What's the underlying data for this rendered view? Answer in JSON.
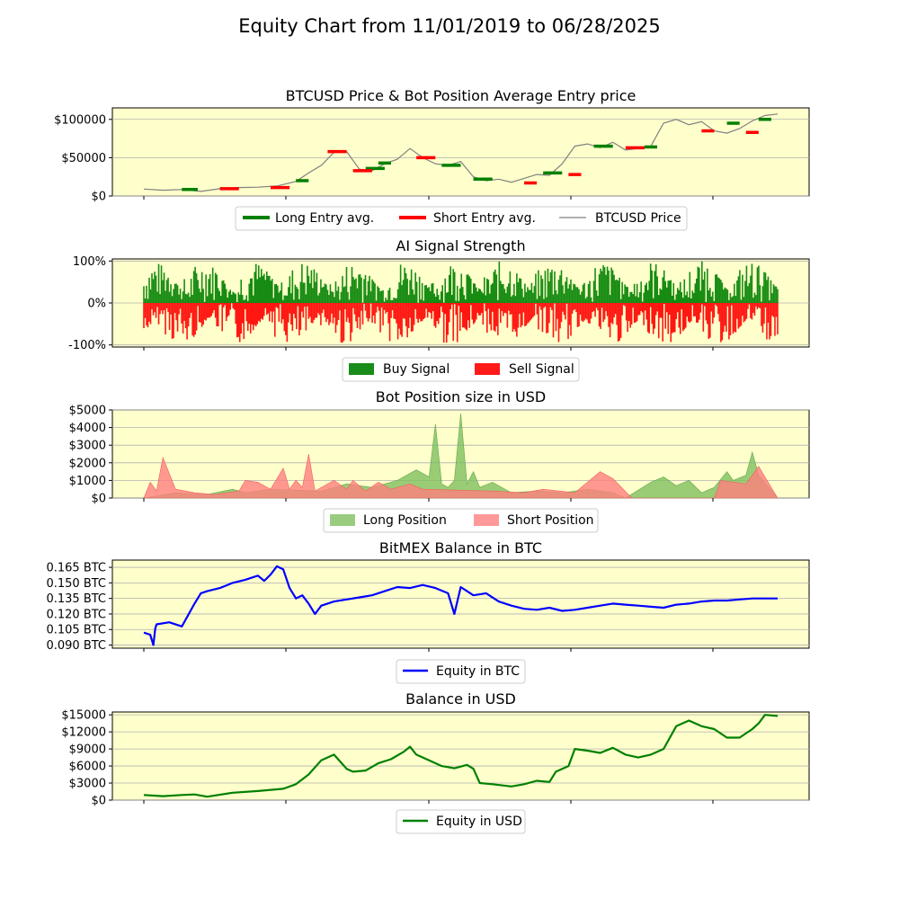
{
  "figure": {
    "title": "Equity Chart from 11/01/2019 to 06/28/2025"
  },
  "colors": {
    "panel_bg": "#ffffcc",
    "long": "#008000",
    "short": "#ff0000",
    "price": "#808080",
    "btc_equity": "#0000ff",
    "usd_equity": "#008000",
    "long_fill": "#7fbf5f",
    "short_fill": "#ff7f7f"
  },
  "chart_data": [
    {
      "type": "line",
      "title": "BTCUSD Price & Bot Position Average Entry price",
      "ylim": [
        0,
        115000
      ],
      "y_ticks": [
        0,
        50000,
        100000
      ],
      "y_tick_labels": [
        "$0",
        "$50000",
        "$100000"
      ],
      "grid": true,
      "legend": {
        "placement": "bottom-center",
        "entries": [
          "Long Entry avg.",
          "Short Entry avg.",
          "BTCUSD Price"
        ]
      },
      "series": [
        {
          "name": "BTCUSD Price",
          "x": [
            0,
            0.03,
            0.06,
            0.09,
            0.12,
            0.15,
            0.18,
            0.21,
            0.24,
            0.26,
            0.28,
            0.3,
            0.32,
            0.34,
            0.36,
            0.38,
            0.4,
            0.42,
            0.44,
            0.46,
            0.48,
            0.5,
            0.52,
            0.54,
            0.56,
            0.58,
            0.6,
            0.62,
            0.64,
            0.66,
            0.68,
            0.7,
            0.72,
            0.74,
            0.76,
            0.78,
            0.8,
            0.82,
            0.84,
            0.86,
            0.88,
            0.9,
            0.92,
            0.94,
            0.96,
            0.98,
            1.0
          ],
          "values": [
            9000,
            7500,
            8500,
            6000,
            9500,
            11000,
            11500,
            13000,
            19000,
            30000,
            40000,
            57000,
            58000,
            35000,
            33000,
            42000,
            48000,
            62000,
            50000,
            42000,
            40000,
            45000,
            25000,
            20000,
            22000,
            18000,
            23000,
            28000,
            27000,
            42000,
            65000,
            68000,
            63000,
            70000,
            60000,
            62000,
            65000,
            95000,
            100000,
            93000,
            97000,
            85000,
            82000,
            88000,
            98000,
            105000,
            107000
          ]
        },
        {
          "name": "Long Entry avg.",
          "segments": [
            [
              0.06,
              0.085,
              8500
            ],
            [
              0.24,
              0.26,
              20000
            ],
            [
              0.35,
              0.38,
              36000
            ],
            [
              0.37,
              0.39,
              43000
            ],
            [
              0.47,
              0.5,
              40000
            ],
            [
              0.52,
              0.55,
              22000
            ],
            [
              0.63,
              0.66,
              30000
            ],
            [
              0.71,
              0.74,
              65000
            ],
            [
              0.79,
              0.81,
              64000
            ],
            [
              0.92,
              0.94,
              95000
            ],
            [
              0.97,
              0.99,
              100000
            ]
          ]
        },
        {
          "name": "Short Entry avg.",
          "segments": [
            [
              0.12,
              0.15,
              9500
            ],
            [
              0.2,
              0.23,
              11000
            ],
            [
              0.29,
              0.32,
              58000
            ],
            [
              0.33,
              0.36,
              33000
            ],
            [
              0.43,
              0.46,
              50000
            ],
            [
              0.6,
              0.62,
              17000
            ],
            [
              0.67,
              0.69,
              28000
            ],
            [
              0.76,
              0.79,
              63000
            ],
            [
              0.88,
              0.9,
              85000
            ],
            [
              0.95,
              0.97,
              83000
            ]
          ]
        }
      ]
    },
    {
      "type": "area",
      "title": "AI Signal Strength",
      "ylim": [
        -1.05,
        1.05
      ],
      "y_ticks": [
        -1,
        0,
        1
      ],
      "y_tick_labels": [
        "-100%",
        "0%",
        "100%"
      ],
      "grid": true,
      "legend": {
        "placement": "bottom-center",
        "entries": [
          "Buy Signal",
          "Sell Signal"
        ]
      },
      "series": [
        {
          "name": "Buy Signal",
          "range": [
            0,
            1.0
          ]
        },
        {
          "name": "Sell Signal",
          "range": [
            -1.0,
            0
          ]
        }
      ]
    },
    {
      "type": "area",
      "title": "Bot Position size in USD",
      "ylim": [
        0,
        5000
      ],
      "y_ticks": [
        0,
        1000,
        2000,
        3000,
        4000,
        5000
      ],
      "y_tick_labels": [
        "$0",
        "$1000",
        "$2000",
        "$3000",
        "$4000",
        "$5000"
      ],
      "grid": true,
      "legend": {
        "placement": "bottom-center",
        "entries": [
          "Long Position",
          "Short Position"
        ]
      },
      "series": [
        {
          "name": "Long Position",
          "x": [
            0,
            0.05,
            0.1,
            0.14,
            0.16,
            0.2,
            0.28,
            0.32,
            0.36,
            0.4,
            0.43,
            0.45,
            0.46,
            0.47,
            0.48,
            0.49,
            0.5,
            0.51,
            0.52,
            0.53,
            0.55,
            0.58,
            0.62,
            0.66,
            0.7,
            0.74,
            0.76,
            0.8,
            0.82,
            0.84,
            0.86,
            0.88,
            0.9,
            0.92,
            0.93,
            0.95,
            0.96,
            0.97,
            1.0
          ],
          "values": [
            0,
            300,
            200,
            500,
            300,
            500,
            400,
            800,
            600,
            1000,
            1600,
            1200,
            4200,
            800,
            600,
            1000,
            4800,
            800,
            1500,
            600,
            900,
            300,
            400,
            300,
            500,
            300,
            0,
            900,
            1200,
            700,
            1000,
            300,
            600,
            1500,
            1000,
            1300,
            2600,
            1300,
            0
          ]
        },
        {
          "name": "Short Position",
          "x": [
            0,
            0.01,
            0.02,
            0.03,
            0.05,
            0.08,
            0.11,
            0.15,
            0.16,
            0.18,
            0.2,
            0.22,
            0.23,
            0.24,
            0.25,
            0.26,
            0.27,
            0.28,
            0.3,
            0.32,
            0.33,
            0.35,
            0.37,
            0.39,
            0.42,
            0.44,
            0.55,
            0.6,
            0.63,
            0.68,
            0.72,
            0.74,
            0.77,
            0.79,
            0.8,
            0.9,
            0.91,
            0.95,
            0.97,
            0.98,
            1.0
          ],
          "values": [
            0,
            900,
            400,
            2300,
            500,
            300,
            200,
            400,
            1000,
            900,
            500,
            1700,
            500,
            1000,
            600,
            2500,
            400,
            600,
            1000,
            500,
            1000,
            400,
            900,
            500,
            800,
            500,
            400,
            300,
            500,
            300,
            1500,
            1100,
            0,
            0,
            0,
            0,
            1000,
            800,
            1800,
            1200,
            0
          ]
        }
      ]
    },
    {
      "type": "line",
      "title": "BitMEX Balance in BTC",
      "ylim": [
        0.087,
        0.172
      ],
      "y_ticks": [
        0.09,
        0.105,
        0.12,
        0.135,
        0.15,
        0.165
      ],
      "y_tick_labels": [
        "0.090 BTC",
        "0.105 BTC",
        "0.120 BTC",
        "0.135 BTC",
        "0.150 BTC",
        "0.165 BTC"
      ],
      "grid": true,
      "legend": {
        "placement": "bottom-center",
        "entries": [
          "Equity in BTC"
        ]
      },
      "series": [
        {
          "name": "Equity in BTC",
          "x": [
            0,
            0.01,
            0.015,
            0.018,
            0.02,
            0.04,
            0.06,
            0.08,
            0.09,
            0.1,
            0.12,
            0.14,
            0.16,
            0.18,
            0.19,
            0.2,
            0.21,
            0.22,
            0.23,
            0.24,
            0.25,
            0.26,
            0.27,
            0.28,
            0.29,
            0.3,
            0.32,
            0.34,
            0.36,
            0.38,
            0.4,
            0.42,
            0.44,
            0.46,
            0.48,
            0.49,
            0.5,
            0.51,
            0.52,
            0.54,
            0.56,
            0.58,
            0.6,
            0.62,
            0.64,
            0.66,
            0.68,
            0.7,
            0.72,
            0.74,
            0.76,
            0.78,
            0.8,
            0.82,
            0.84,
            0.86,
            0.88,
            0.9,
            0.92,
            0.94,
            0.96,
            0.98,
            1.0
          ],
          "values": [
            0.102,
            0.1,
            0.09,
            0.106,
            0.11,
            0.112,
            0.108,
            0.13,
            0.14,
            0.142,
            0.145,
            0.15,
            0.153,
            0.157,
            0.152,
            0.158,
            0.166,
            0.163,
            0.145,
            0.135,
            0.138,
            0.13,
            0.12,
            0.128,
            0.13,
            0.132,
            0.134,
            0.136,
            0.138,
            0.142,
            0.146,
            0.145,
            0.148,
            0.145,
            0.14,
            0.12,
            0.146,
            0.142,
            0.138,
            0.14,
            0.132,
            0.128,
            0.125,
            0.124,
            0.126,
            0.123,
            0.124,
            0.126,
            0.128,
            0.13,
            0.129,
            0.128,
            0.127,
            0.126,
            0.129,
            0.13,
            0.132,
            0.133,
            0.133,
            0.134,
            0.135,
            0.135,
            0.135
          ]
        }
      ]
    },
    {
      "type": "line",
      "title": "Balance in USD",
      "ylim": [
        0,
        15500
      ],
      "y_ticks": [
        0,
        3000,
        6000,
        9000,
        12000,
        15000
      ],
      "y_tick_labels": [
        "$0",
        "$3000",
        "$6000",
        "$9000",
        "$12000",
        "$15000"
      ],
      "grid": true,
      "legend": {
        "placement": "bottom-center",
        "entries": [
          "Equity in USD"
        ]
      },
      "series": [
        {
          "name": "Equity in USD",
          "x": [
            0,
            0.03,
            0.06,
            0.08,
            0.1,
            0.14,
            0.18,
            0.22,
            0.24,
            0.26,
            0.28,
            0.3,
            0.32,
            0.33,
            0.35,
            0.37,
            0.39,
            0.41,
            0.42,
            0.43,
            0.45,
            0.47,
            0.49,
            0.51,
            0.52,
            0.53,
            0.55,
            0.58,
            0.6,
            0.62,
            0.64,
            0.65,
            0.67,
            0.68,
            0.7,
            0.72,
            0.74,
            0.76,
            0.78,
            0.8,
            0.82,
            0.84,
            0.86,
            0.88,
            0.9,
            0.92,
            0.94,
            0.96,
            0.97,
            0.98,
            1.0
          ],
          "values": [
            900,
            700,
            900,
            1000,
            600,
            1300,
            1600,
            2000,
            2800,
            4500,
            7000,
            8000,
            5500,
            5000,
            5200,
            6500,
            7200,
            8500,
            9400,
            8000,
            7000,
            6000,
            5600,
            6200,
            5500,
            3000,
            2800,
            2400,
            2800,
            3400,
            3200,
            5000,
            6000,
            9000,
            8700,
            8300,
            9200,
            8000,
            7500,
            8000,
            9000,
            13000,
            14000,
            13000,
            12500,
            11000,
            11000,
            12500,
            13500,
            15000,
            14800
          ]
        }
      ]
    }
  ]
}
